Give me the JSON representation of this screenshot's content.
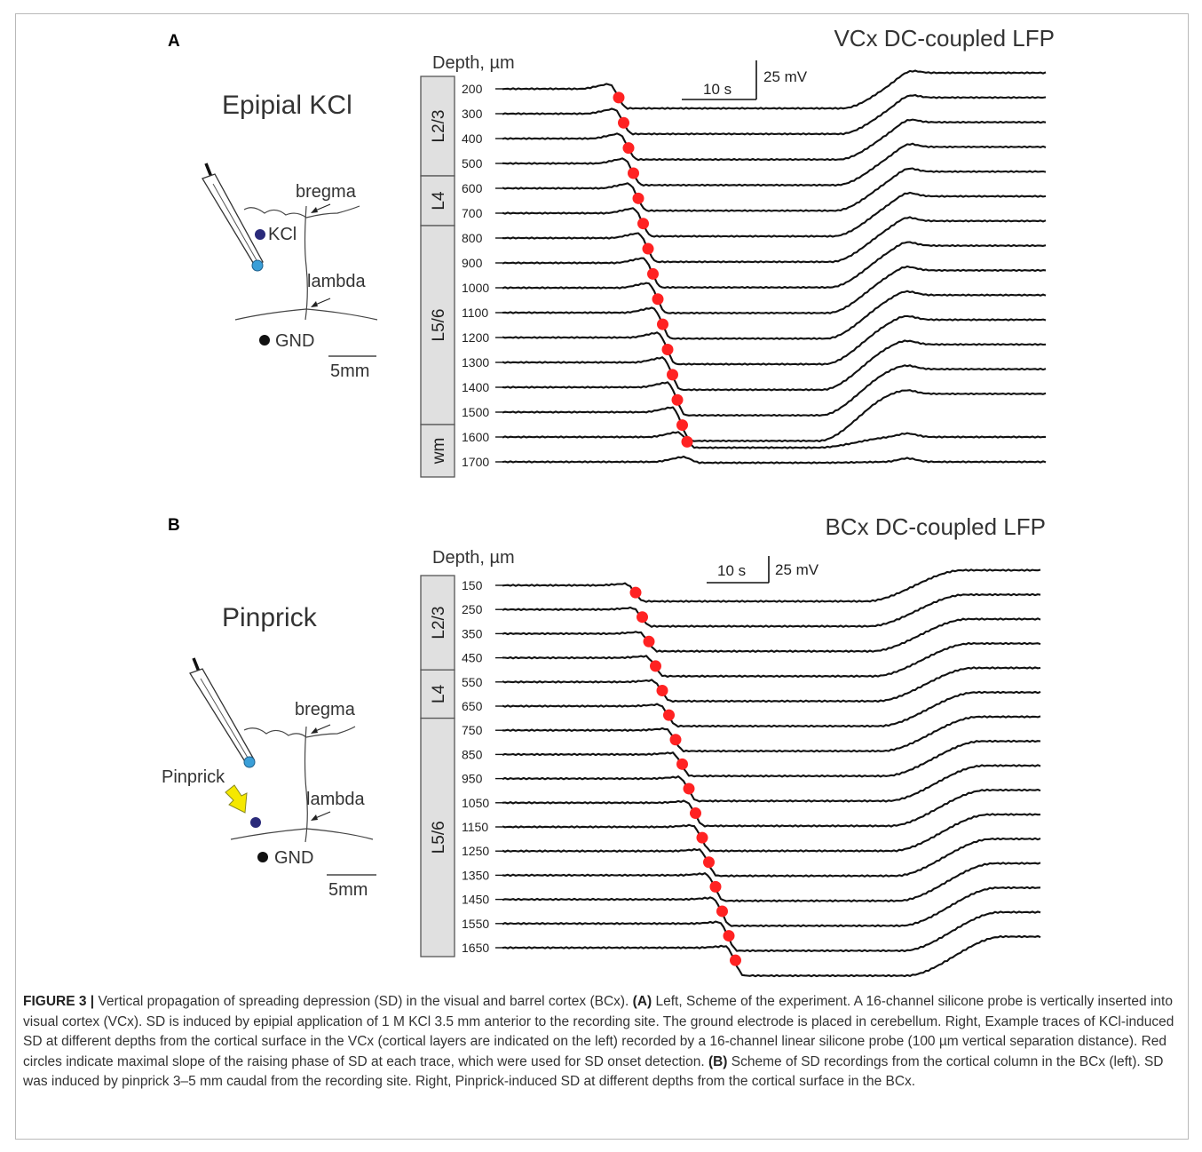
{
  "figure": {
    "panel_a": {
      "letter": "A",
      "title": "VCx DC-coupled LFP",
      "depth_header": "Depth, µm",
      "stimulus_label": "Epipial KCl",
      "scheme": {
        "bregma": "bregma",
        "lambda": "lambda",
        "stim_marker": "KCl",
        "ground": "GND",
        "scale": "5mm"
      },
      "scalebar": {
        "time": "10 s",
        "voltage": "25 mV"
      },
      "layers": [
        {
          "label": "L2/3",
          "from_depth": 200,
          "to_depth": 500
        },
        {
          "label": "L4",
          "from_depth": 600,
          "to_depth": 700
        },
        {
          "label": "L5/6",
          "from_depth": 800,
          "to_depth": 1500
        },
        {
          "label": "wm",
          "from_depth": 1600,
          "to_depth": 1700
        }
      ],
      "depths": [
        200,
        300,
        400,
        500,
        600,
        700,
        800,
        900,
        1000,
        1100,
        1200,
        1300,
        1400,
        1500,
        1600,
        1700
      ]
    },
    "panel_b": {
      "letter": "B",
      "title": "BCx DC-coupled LFP",
      "depth_header": "Depth, µm",
      "stimulus_label": "Pinprick",
      "scheme": {
        "bregma": "bregma",
        "lambda": "lambda",
        "stim_marker": "Pinprick",
        "ground": "GND",
        "scale": "5mm"
      },
      "scalebar": {
        "time": "10 s",
        "voltage": "25 mV"
      },
      "layers": [
        {
          "label": "L2/3",
          "from_depth": 150,
          "to_depth": 450
        },
        {
          "label": "L4",
          "from_depth": 550,
          "to_depth": 650
        },
        {
          "label": "L5/6",
          "from_depth": 750,
          "to_depth": 1650
        }
      ],
      "depths": [
        150,
        250,
        350,
        450,
        550,
        650,
        750,
        850,
        950,
        1050,
        1150,
        1250,
        1350,
        1450,
        1550,
        1650
      ]
    },
    "colors": {
      "trace": "#111111",
      "onset_marker": "#ff2222",
      "layer_box": "#e0e0e0",
      "probe_tip": "#3a9fd8",
      "kcl_dot": "#2a2a7a",
      "arrow": "#f5e800"
    }
  },
  "caption": {
    "label": "FIGURE 3 |",
    "p1": " Vertical propagation of spreading depression (SD) in the visual and barrel cortex (BCx). ",
    "a_tag": "(A)",
    "p2": " Left, Scheme of the experiment. A 16-channel silicone probe is vertically inserted into visual cortex (VCx). SD is induced by epipial application of 1 M KCl 3.5 mm anterior to the recording site. The ground electrode is placed in cerebellum. Right, Example traces of KCl-induced SD at different depths from the cortical surface in the VCx (cortical layers are indicated on the left) recorded by a 16-channel linear silicone probe (100 µm vertical separation distance). Red circles indicate maximal slope of the raising phase of SD at each trace, which were used for SD onset detection. ",
    "b_tag": "(B)",
    "p3": " Scheme of SD recordings from the cortical column in the BCx (left). SD was induced by pinprick 3–5 mm caudal from the recording site. Right, Pinprick-induced SD at different depths from the cortical surface in the BCx."
  }
}
